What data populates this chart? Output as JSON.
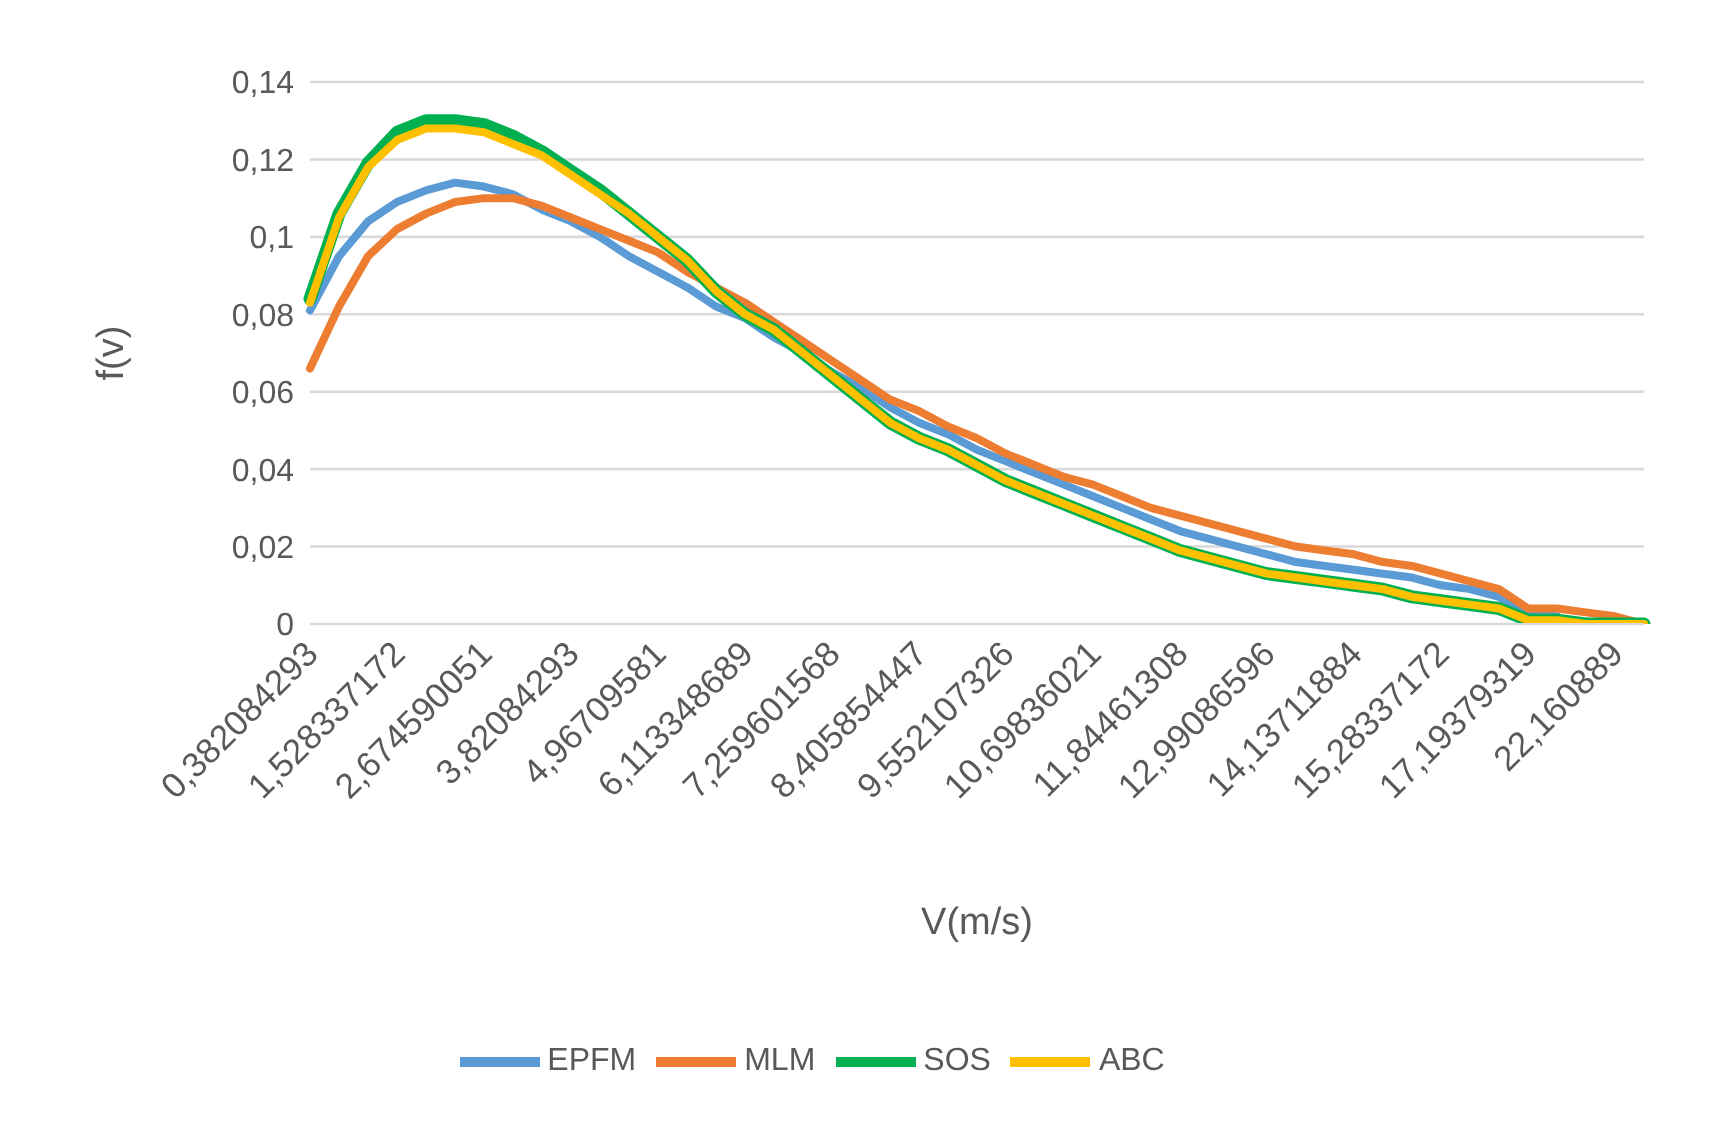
{
  "chart_data": {
    "type": "line",
    "xlabel": "V(m/s)",
    "ylabel": "f(v)",
    "categories": [
      "0,382084293",
      null,
      null,
      "1,528337172",
      null,
      null,
      "2,674590051",
      null,
      null,
      "3,82084293",
      null,
      null,
      "4,96709581",
      null,
      null,
      "6,113348689",
      null,
      null,
      "7,259601568",
      null,
      null,
      "8,405854447",
      null,
      null,
      "9,552107326",
      null,
      null,
      "10,69836021",
      null,
      null,
      "11,84461308",
      null,
      null,
      "12,99086596",
      null,
      null,
      "14,13711884",
      null,
      null,
      "15,28337172",
      null,
      null,
      "17,19379319",
      null,
      null,
      "22,160889",
      null
    ],
    "series": [
      {
        "name": "EPFM",
        "color": "#5b9bd5",
        "values": [
          0.081,
          0.095,
          0.104,
          0.109,
          0.112,
          0.114,
          0.113,
          0.111,
          0.107,
          0.104,
          0.1,
          0.095,
          0.091,
          0.087,
          0.082,
          0.079,
          0.074,
          0.07,
          0.065,
          0.061,
          0.056,
          0.052,
          0.049,
          0.045,
          0.042,
          0.039,
          0.036,
          0.033,
          0.03,
          0.027,
          0.024,
          0.022,
          0.02,
          0.018,
          0.016,
          0.015,
          0.014,
          0.013,
          0.012,
          0.01,
          0.009,
          0.007,
          0.003,
          0.002,
          null,
          null,
          null
        ]
      },
      {
        "name": "MLM",
        "color": "#ed7d31",
        "values": [
          0.066,
          0.082,
          0.095,
          0.102,
          0.106,
          0.109,
          0.11,
          0.11,
          0.108,
          0.105,
          0.102,
          0.099,
          0.096,
          0.091,
          0.087,
          0.083,
          0.078,
          0.073,
          0.068,
          0.063,
          0.058,
          0.055,
          0.051,
          0.048,
          0.044,
          0.041,
          0.038,
          0.036,
          0.033,
          0.03,
          0.028,
          0.026,
          0.024,
          0.022,
          0.02,
          0.019,
          0.018,
          0.016,
          0.015,
          0.013,
          0.011,
          0.009,
          0.004,
          0.004,
          0.003,
          0.002,
          0
        ]
      },
      {
        "name": "SOS",
        "color": "#00b050",
        "values": [
          0.084,
          0.106,
          0.119,
          0.127,
          0.13,
          0.13,
          0.129,
          0.126,
          0.122,
          0.117,
          0.112,
          0.106,
          0.1,
          0.094,
          0.086,
          0.08,
          0.076,
          0.07,
          0.064,
          0.058,
          0.052,
          0.048,
          0.045,
          0.041,
          0.037,
          0.034,
          0.031,
          0.028,
          0.025,
          0.022,
          0.019,
          0.017,
          0.015,
          0.013,
          0.012,
          0.011,
          0.01,
          0.009,
          0.007,
          0.006,
          0.005,
          0.004,
          0.001,
          0.001,
          0,
          0,
          0
        ]
      },
      {
        "name": "ABC",
        "color": "#ffc000",
        "values": [
          0.083,
          0.105,
          0.118,
          0.125,
          0.128,
          0.128,
          0.127,
          0.124,
          0.121,
          0.116,
          0.111,
          0.106,
          0.1,
          0.094,
          0.086,
          0.08,
          0.076,
          0.07,
          0.064,
          0.058,
          0.052,
          0.048,
          0.045,
          0.041,
          0.037,
          0.034,
          0.031,
          0.028,
          0.025,
          0.022,
          0.019,
          0.017,
          0.015,
          0.013,
          0.012,
          0.011,
          0.01,
          0.009,
          0.007,
          0.006,
          0.005,
          0.004,
          0.001,
          0.001,
          0,
          0,
          0
        ]
      }
    ],
    "ylim": [
      0,
      0.14
    ],
    "yticks": [
      0,
      {
        "value": 0.02,
        "label": "0,02"
      },
      {
        "value": 0.04,
        "label": "0,04"
      },
      {
        "value": 0.06,
        "label": "0,06"
      },
      {
        "value": 0.08,
        "label": "0,08"
      },
      {
        "value": 0.1,
        "label": "0,1"
      },
      {
        "value": 0.12,
        "label": "0,12"
      },
      {
        "value": 0.14,
        "label": "0,14"
      }
    ],
    "grid": "y",
    "legend": "bottom",
    "marker": "none",
    "line_style": "solid"
  }
}
